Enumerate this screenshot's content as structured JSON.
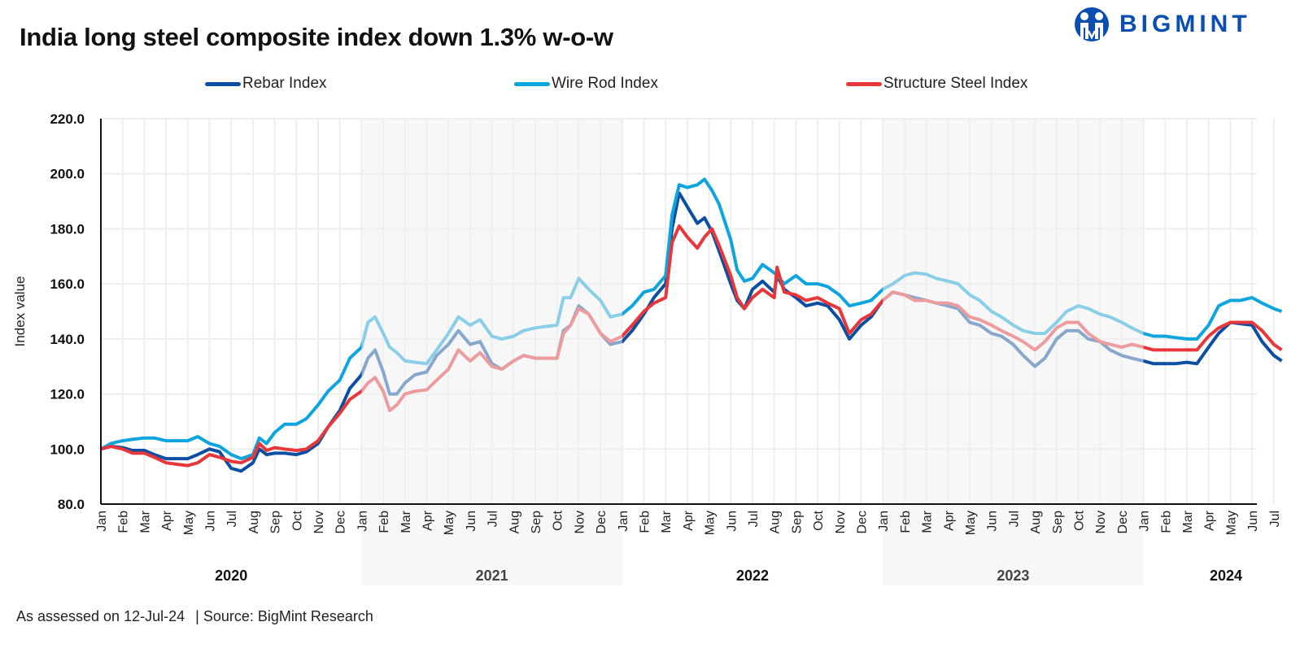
{
  "header": {
    "title": "India long steel composite index down 1.3% w-o-w",
    "logo_text": "BIGMINT"
  },
  "footer": {
    "assessed": "As assessed on 12-Jul-24",
    "source": "| Source: BigMint Research"
  },
  "colors": {
    "rebar": "#0b4ea2",
    "wire_rod": "#0ea5de",
    "structure": "#e8373a",
    "shade": "#f0f0f0",
    "grid": "#eeeeee",
    "logo": "#0a4fb0"
  },
  "chart_data": {
    "type": "line",
    "title": "India long steel composite index down 1.3% w-o-w",
    "ylabel": "Index value",
    "xlabel": "",
    "ylim": [
      80,
      220
    ],
    "yticks": [
      "80.0",
      "100.0",
      "120.0",
      "140.0",
      "160.0",
      "180.0",
      "200.0",
      "220.0"
    ],
    "grid": true,
    "legend_position": "top",
    "shaded_years": [
      "2021",
      "2023"
    ],
    "year_labels": [
      "2020",
      "2021",
      "2022",
      "2023",
      "2024"
    ],
    "month_labels": [
      "Jan",
      "Feb",
      "Mar",
      "Apr",
      "May",
      "Jun",
      "Jul",
      "Aug",
      "Sep",
      "Oct",
      "Nov",
      "Dec",
      "Jan",
      "Feb",
      "Mar",
      "Apr",
      "May",
      "Jun",
      "Jul",
      "Aug",
      "Sep",
      "Oct",
      "Nov",
      "Dec",
      "Jan",
      "Feb",
      "Mar",
      "Apr",
      "May",
      "Jun",
      "Jul",
      "Aug",
      "Sep",
      "Oct",
      "Nov",
      "Dec",
      "Jan",
      "Feb",
      "Mar",
      "Apr",
      "May",
      "Jun",
      "Jul",
      "Aug",
      "Sep",
      "Oct",
      "Nov",
      "Dec",
      "Jan",
      "Feb",
      "Mar",
      "Apr",
      "May",
      "Jun",
      "Jul"
    ],
    "dates": [
      "2020-01-01",
      "2020-01-15",
      "2020-02-01",
      "2020-02-15",
      "2020-03-01",
      "2020-03-15",
      "2020-04-01",
      "2020-04-15",
      "2020-05-01",
      "2020-05-15",
      "2020-06-01",
      "2020-06-15",
      "2020-07-01",
      "2020-07-15",
      "2020-08-01",
      "2020-08-10",
      "2020-08-20",
      "2020-09-01",
      "2020-09-15",
      "2020-10-01",
      "2020-10-15",
      "2020-11-01",
      "2020-11-15",
      "2020-12-01",
      "2020-12-15",
      "2021-01-01",
      "2021-01-10",
      "2021-01-20",
      "2021-02-01",
      "2021-02-10",
      "2021-02-20",
      "2021-03-01",
      "2021-03-15",
      "2021-04-01",
      "2021-04-15",
      "2021-05-01",
      "2021-05-15",
      "2021-06-01",
      "2021-06-15",
      "2021-07-01",
      "2021-07-15",
      "2021-08-01",
      "2021-08-15",
      "2021-09-01",
      "2021-09-15",
      "2021-10-01",
      "2021-10-10",
      "2021-10-20",
      "2021-11-01",
      "2021-11-15",
      "2021-12-01",
      "2021-12-15",
      "2022-01-01",
      "2022-01-15",
      "2022-02-01",
      "2022-02-15",
      "2022-03-01",
      "2022-03-10",
      "2022-03-20",
      "2022-04-01",
      "2022-04-15",
      "2022-04-25",
      "2022-05-05",
      "2022-05-15",
      "2022-06-01",
      "2022-06-10",
      "2022-06-20",
      "2022-07-01",
      "2022-07-15",
      "2022-08-01",
      "2022-08-05",
      "2022-08-15",
      "2022-09-01",
      "2022-09-15",
      "2022-10-01",
      "2022-10-15",
      "2022-11-01",
      "2022-11-15",
      "2022-12-01",
      "2022-12-15",
      "2023-01-01",
      "2023-01-15",
      "2023-02-01",
      "2023-02-15",
      "2023-03-01",
      "2023-03-15",
      "2023-04-01",
      "2023-04-15",
      "2023-05-01",
      "2023-05-15",
      "2023-06-01",
      "2023-06-15",
      "2023-07-01",
      "2023-07-15",
      "2023-08-01",
      "2023-08-15",
      "2023-09-01",
      "2023-09-15",
      "2023-10-01",
      "2023-10-15",
      "2023-11-01",
      "2023-11-15",
      "2023-12-01",
      "2023-12-15",
      "2024-01-01",
      "2024-01-15",
      "2024-02-01",
      "2024-02-15",
      "2024-03-01",
      "2024-03-15",
      "2024-04-01",
      "2024-04-15",
      "2024-05-01",
      "2024-05-15",
      "2024-06-01",
      "2024-06-15",
      "2024-07-01",
      "2024-07-12"
    ],
    "series": [
      {
        "name": "Rebar Index",
        "key": "rebar",
        "values": [
          100,
          101,
          100.5,
          99.5,
          99.5,
          98,
          96.5,
          96.5,
          96.5,
          98,
          100,
          99,
          93,
          92,
          95,
          100,
          98,
          98.5,
          98.5,
          98,
          99,
          102,
          108,
          114,
          122,
          127,
          133,
          136,
          128,
          120,
          120,
          124,
          127,
          128,
          134,
          138,
          143,
          138,
          139,
          131,
          129,
          132,
          134,
          133,
          133,
          133,
          143,
          145,
          152,
          149,
          142,
          138,
          139,
          143,
          149,
          155,
          160,
          180,
          193,
          188,
          182,
          184,
          179,
          172,
          160,
          154,
          151,
          158,
          161,
          157,
          163,
          158,
          155,
          152,
          153,
          152,
          147,
          140,
          145,
          148,
          154,
          157,
          156,
          155,
          154,
          153,
          152,
          151,
          146,
          145,
          142,
          141,
          138,
          134,
          130,
          133,
          140,
          143,
          143,
          140,
          139,
          136,
          134,
          133,
          132,
          131,
          131,
          131,
          131.5,
          131,
          137,
          142,
          146,
          145.5,
          145,
          139,
          134,
          132
        ]
      },
      {
        "name": "Wire Rod Index",
        "key": "wire_rod",
        "values": [
          100,
          102,
          103,
          103.5,
          104,
          104,
          103,
          103,
          103,
          104.5,
          102,
          101,
          98,
          96.5,
          98,
          104,
          102,
          106,
          109,
          109,
          111,
          116,
          121,
          125,
          133,
          137,
          146,
          148,
          142,
          137,
          135,
          132,
          131.5,
          131,
          136,
          142,
          148,
          145,
          147,
          141,
          140,
          141,
          143,
          144,
          144.5,
          145,
          155,
          155,
          162,
          158,
          154,
          148,
          149,
          152,
          157,
          158,
          163,
          185,
          196,
          195,
          196,
          198,
          194,
          189,
          176,
          165,
          161,
          162,
          167,
          164,
          163,
          160,
          163,
          160,
          160,
          159,
          156,
          152,
          153,
          154,
          158,
          160,
          163,
          164,
          163.5,
          162,
          161,
          160,
          156,
          154,
          150,
          148,
          145,
          143,
          142,
          142,
          146,
          150,
          152,
          151,
          149,
          148,
          146,
          144,
          142,
          141,
          141,
          140.5,
          140,
          140,
          145,
          152,
          154,
          154,
          155,
          153,
          151,
          150
        ]
      },
      {
        "name": "Structure Steel Index",
        "key": "structure",
        "values": [
          100,
          101,
          100,
          98.5,
          98.5,
          97,
          95,
          94.5,
          94,
          95,
          98,
          97,
          95.5,
          95,
          97,
          102,
          99.5,
          100.5,
          100,
          99.5,
          100,
          103,
          108,
          113,
          118,
          121,
          124,
          126,
          121,
          114,
          116,
          120,
          121,
          121.5,
          125,
          129,
          136,
          132,
          135,
          130,
          129,
          132,
          134,
          133,
          133,
          133,
          142,
          145,
          151,
          149,
          142,
          139,
          141,
          145,
          150,
          153,
          155,
          175,
          181,
          177,
          173,
          177,
          180,
          174,
          163,
          155,
          151,
          155,
          158,
          155,
          166,
          157,
          156,
          154,
          155,
          153,
          151,
          142,
          147,
          149,
          154,
          157,
          156,
          154,
          154,
          153,
          153,
          152,
          148,
          147,
          145,
          143,
          141,
          139,
          136,
          139,
          144,
          146,
          146,
          142,
          139,
          138,
          137,
          138,
          137,
          136,
          136,
          136,
          136,
          136,
          141,
          144,
          146,
          146,
          146,
          143,
          138,
          136
        ]
      }
    ]
  }
}
